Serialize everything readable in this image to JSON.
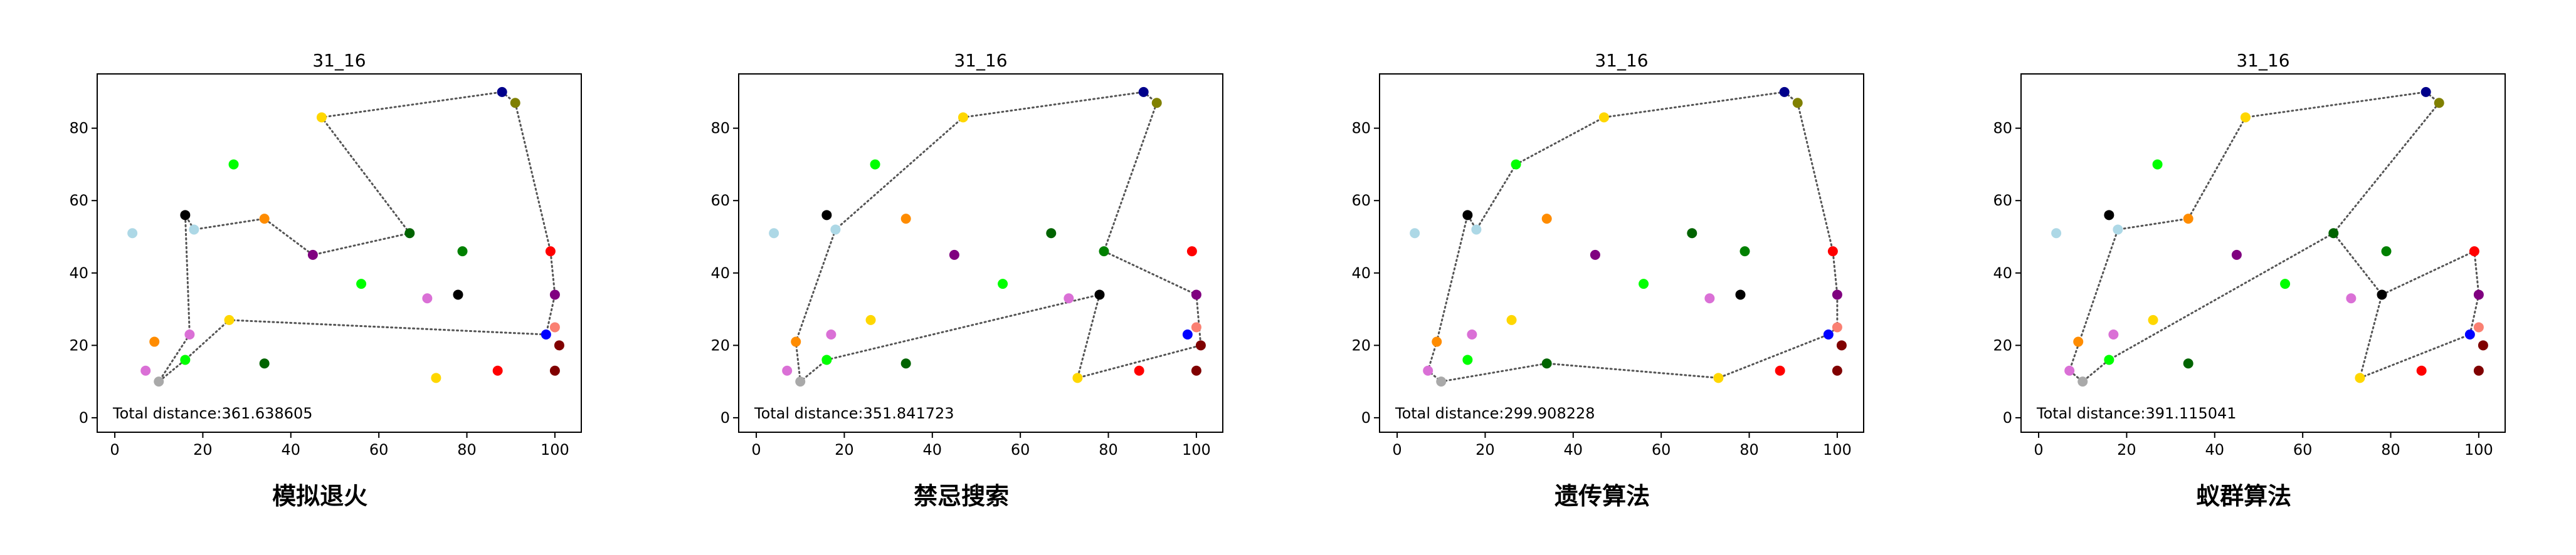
{
  "figure_title": "",
  "chart_data": [
    {
      "type": "scatter",
      "title": "31_16",
      "caption": "模拟退火",
      "annotation": "Total distance:361.638605",
      "xlabel": "",
      "ylabel": "",
      "xlim": [
        -4,
        106
      ],
      "ylim": [
        -4,
        95
      ],
      "xticks": [
        0,
        20,
        40,
        60,
        80,
        100
      ],
      "yticks": [
        0,
        20,
        40,
        60,
        80
      ],
      "grid": false,
      "points": [
        {
          "x": 88,
          "y": 90,
          "color": "#00008b"
        },
        {
          "x": 91,
          "y": 87,
          "color": "#808000"
        },
        {
          "x": 47,
          "y": 83,
          "color": "#ffd700"
        },
        {
          "x": 27,
          "y": 70,
          "color": "#00ff00"
        },
        {
          "x": 16,
          "y": 56,
          "color": "#000000"
        },
        {
          "x": 34,
          "y": 55,
          "color": "#ff8c00"
        },
        {
          "x": 18,
          "y": 52,
          "color": "#add8e6"
        },
        {
          "x": 4,
          "y": 51,
          "color": "#add8e6"
        },
        {
          "x": 67,
          "y": 51,
          "color": "#006400"
        },
        {
          "x": 79,
          "y": 46,
          "color": "#008000"
        },
        {
          "x": 99,
          "y": 46,
          "color": "#ff0000"
        },
        {
          "x": 45,
          "y": 45,
          "color": "#800080"
        },
        {
          "x": 56,
          "y": 37,
          "color": "#00ff00"
        },
        {
          "x": 78,
          "y": 34,
          "color": "#000000"
        },
        {
          "x": 71,
          "y": 33,
          "color": "#da70d6"
        },
        {
          "x": 100,
          "y": 34,
          "color": "#800080"
        },
        {
          "x": 26,
          "y": 27,
          "color": "#ffd700"
        },
        {
          "x": 100,
          "y": 25,
          "color": "#fa8072"
        },
        {
          "x": 98,
          "y": 23,
          "color": "#0000ff"
        },
        {
          "x": 17,
          "y": 23,
          "color": "#da70d6"
        },
        {
          "x": 9,
          "y": 21,
          "color": "#ff8c00"
        },
        {
          "x": 101,
          "y": 20,
          "color": "#800000"
        },
        {
          "x": 16,
          "y": 16,
          "color": "#00ff00"
        },
        {
          "x": 34,
          "y": 15,
          "color": "#006400"
        },
        {
          "x": 7,
          "y": 13,
          "color": "#da70d6"
        },
        {
          "x": 87,
          "y": 13,
          "color": "#ff0000"
        },
        {
          "x": 100,
          "y": 13,
          "color": "#800000"
        },
        {
          "x": 73,
          "y": 11,
          "color": "#ffd700"
        },
        {
          "x": 10,
          "y": 10,
          "color": "#a9a9a9"
        }
      ],
      "route": [
        {
          "x": 88,
          "y": 90
        },
        {
          "x": 91,
          "y": 87
        },
        {
          "x": 99,
          "y": 46
        },
        {
          "x": 100,
          "y": 34
        },
        {
          "x": 98,
          "y": 23
        },
        {
          "x": 26,
          "y": 27
        },
        {
          "x": 16,
          "y": 16
        },
        {
          "x": 10,
          "y": 10
        },
        {
          "x": 17,
          "y": 23
        },
        {
          "x": 16,
          "y": 56
        },
        {
          "x": 18,
          "y": 52
        },
        {
          "x": 34,
          "y": 55
        },
        {
          "x": 45,
          "y": 45
        },
        {
          "x": 67,
          "y": 51
        },
        {
          "x": 47,
          "y": 83
        },
        {
          "x": 88,
          "y": 90
        }
      ]
    },
    {
      "type": "scatter",
      "title": "31_16",
      "caption": "禁忌搜索",
      "annotation": "Total distance:351.841723",
      "xlabel": "",
      "ylabel": "",
      "xlim": [
        -4,
        106
      ],
      "ylim": [
        -4,
        95
      ],
      "xticks": [
        0,
        20,
        40,
        60,
        80,
        100
      ],
      "yticks": [
        0,
        20,
        40,
        60,
        80
      ],
      "grid": false,
      "points": [
        {
          "x": 88,
          "y": 90,
          "color": "#00008b"
        },
        {
          "x": 91,
          "y": 87,
          "color": "#808000"
        },
        {
          "x": 47,
          "y": 83,
          "color": "#ffd700"
        },
        {
          "x": 27,
          "y": 70,
          "color": "#00ff00"
        },
        {
          "x": 16,
          "y": 56,
          "color": "#000000"
        },
        {
          "x": 34,
          "y": 55,
          "color": "#ff8c00"
        },
        {
          "x": 18,
          "y": 52,
          "color": "#add8e6"
        },
        {
          "x": 4,
          "y": 51,
          "color": "#add8e6"
        },
        {
          "x": 67,
          "y": 51,
          "color": "#006400"
        },
        {
          "x": 79,
          "y": 46,
          "color": "#008000"
        },
        {
          "x": 99,
          "y": 46,
          "color": "#ff0000"
        },
        {
          "x": 45,
          "y": 45,
          "color": "#800080"
        },
        {
          "x": 56,
          "y": 37,
          "color": "#00ff00"
        },
        {
          "x": 78,
          "y": 34,
          "color": "#000000"
        },
        {
          "x": 71,
          "y": 33,
          "color": "#da70d6"
        },
        {
          "x": 100,
          "y": 34,
          "color": "#800080"
        },
        {
          "x": 26,
          "y": 27,
          "color": "#ffd700"
        },
        {
          "x": 100,
          "y": 25,
          "color": "#fa8072"
        },
        {
          "x": 98,
          "y": 23,
          "color": "#0000ff"
        },
        {
          "x": 17,
          "y": 23,
          "color": "#da70d6"
        },
        {
          "x": 9,
          "y": 21,
          "color": "#ff8c00"
        },
        {
          "x": 101,
          "y": 20,
          "color": "#800000"
        },
        {
          "x": 16,
          "y": 16,
          "color": "#00ff00"
        },
        {
          "x": 34,
          "y": 15,
          "color": "#006400"
        },
        {
          "x": 7,
          "y": 13,
          "color": "#da70d6"
        },
        {
          "x": 87,
          "y": 13,
          "color": "#ff0000"
        },
        {
          "x": 100,
          "y": 13,
          "color": "#800000"
        },
        {
          "x": 73,
          "y": 11,
          "color": "#ffd700"
        },
        {
          "x": 10,
          "y": 10,
          "color": "#a9a9a9"
        }
      ],
      "route": [
        {
          "x": 88,
          "y": 90
        },
        {
          "x": 91,
          "y": 87
        },
        {
          "x": 79,
          "y": 46
        },
        {
          "x": 100,
          "y": 34
        },
        {
          "x": 101,
          "y": 20
        },
        {
          "x": 73,
          "y": 11
        },
        {
          "x": 78,
          "y": 34
        },
        {
          "x": 16,
          "y": 16
        },
        {
          "x": 10,
          "y": 10
        },
        {
          "x": 9,
          "y": 21
        },
        {
          "x": 18,
          "y": 52
        },
        {
          "x": 47,
          "y": 83
        },
        {
          "x": 88,
          "y": 90
        }
      ]
    },
    {
      "type": "scatter",
      "title": "31_16",
      "caption": "遗传算法",
      "annotation": "Total distance:299.908228",
      "xlabel": "",
      "ylabel": "",
      "xlim": [
        -4,
        106
      ],
      "ylim": [
        -4,
        95
      ],
      "xticks": [
        0,
        20,
        40,
        60,
        80,
        100
      ],
      "yticks": [
        0,
        20,
        40,
        60,
        80
      ],
      "grid": false,
      "points": [
        {
          "x": 88,
          "y": 90,
          "color": "#00008b"
        },
        {
          "x": 91,
          "y": 87,
          "color": "#808000"
        },
        {
          "x": 47,
          "y": 83,
          "color": "#ffd700"
        },
        {
          "x": 27,
          "y": 70,
          "color": "#00ff00"
        },
        {
          "x": 16,
          "y": 56,
          "color": "#000000"
        },
        {
          "x": 34,
          "y": 55,
          "color": "#ff8c00"
        },
        {
          "x": 18,
          "y": 52,
          "color": "#add8e6"
        },
        {
          "x": 4,
          "y": 51,
          "color": "#add8e6"
        },
        {
          "x": 67,
          "y": 51,
          "color": "#006400"
        },
        {
          "x": 79,
          "y": 46,
          "color": "#008000"
        },
        {
          "x": 99,
          "y": 46,
          "color": "#ff0000"
        },
        {
          "x": 45,
          "y": 45,
          "color": "#800080"
        },
        {
          "x": 56,
          "y": 37,
          "color": "#00ff00"
        },
        {
          "x": 78,
          "y": 34,
          "color": "#000000"
        },
        {
          "x": 71,
          "y": 33,
          "color": "#da70d6"
        },
        {
          "x": 100,
          "y": 34,
          "color": "#800080"
        },
        {
          "x": 26,
          "y": 27,
          "color": "#ffd700"
        },
        {
          "x": 100,
          "y": 25,
          "color": "#fa8072"
        },
        {
          "x": 98,
          "y": 23,
          "color": "#0000ff"
        },
        {
          "x": 17,
          "y": 23,
          "color": "#da70d6"
        },
        {
          "x": 9,
          "y": 21,
          "color": "#ff8c00"
        },
        {
          "x": 101,
          "y": 20,
          "color": "#800000"
        },
        {
          "x": 16,
          "y": 16,
          "color": "#00ff00"
        },
        {
          "x": 34,
          "y": 15,
          "color": "#006400"
        },
        {
          "x": 7,
          "y": 13,
          "color": "#da70d6"
        },
        {
          "x": 87,
          "y": 13,
          "color": "#ff0000"
        },
        {
          "x": 100,
          "y": 13,
          "color": "#800000"
        },
        {
          "x": 73,
          "y": 11,
          "color": "#ffd700"
        },
        {
          "x": 10,
          "y": 10,
          "color": "#a9a9a9"
        }
      ],
      "route": [
        {
          "x": 88,
          "y": 90
        },
        {
          "x": 91,
          "y": 87
        },
        {
          "x": 99,
          "y": 46
        },
        {
          "x": 100,
          "y": 34
        },
        {
          "x": 100,
          "y": 25
        },
        {
          "x": 98,
          "y": 23
        },
        {
          "x": 73,
          "y": 11
        },
        {
          "x": 34,
          "y": 15
        },
        {
          "x": 10,
          "y": 10
        },
        {
          "x": 7,
          "y": 13
        },
        {
          "x": 9,
          "y": 21
        },
        {
          "x": 16,
          "y": 56
        },
        {
          "x": 18,
          "y": 52
        },
        {
          "x": 27,
          "y": 70
        },
        {
          "x": 47,
          "y": 83
        },
        {
          "x": 88,
          "y": 90
        }
      ]
    },
    {
      "type": "scatter",
      "title": "31_16",
      "caption": "蚁群算法",
      "annotation": "Total distance:391.115041",
      "xlabel": "",
      "ylabel": "",
      "xlim": [
        -4,
        106
      ],
      "ylim": [
        -4,
        95
      ],
      "xticks": [
        0,
        20,
        40,
        60,
        80,
        100
      ],
      "yticks": [
        0,
        20,
        40,
        60,
        80
      ],
      "grid": false,
      "points": [
        {
          "x": 88,
          "y": 90,
          "color": "#00008b"
        },
        {
          "x": 91,
          "y": 87,
          "color": "#808000"
        },
        {
          "x": 47,
          "y": 83,
          "color": "#ffd700"
        },
        {
          "x": 27,
          "y": 70,
          "color": "#00ff00"
        },
        {
          "x": 16,
          "y": 56,
          "color": "#000000"
        },
        {
          "x": 34,
          "y": 55,
          "color": "#ff8c00"
        },
        {
          "x": 18,
          "y": 52,
          "color": "#add8e6"
        },
        {
          "x": 4,
          "y": 51,
          "color": "#add8e6"
        },
        {
          "x": 67,
          "y": 51,
          "color": "#006400"
        },
        {
          "x": 79,
          "y": 46,
          "color": "#008000"
        },
        {
          "x": 99,
          "y": 46,
          "color": "#ff0000"
        },
        {
          "x": 45,
          "y": 45,
          "color": "#800080"
        },
        {
          "x": 56,
          "y": 37,
          "color": "#00ff00"
        },
        {
          "x": 78,
          "y": 34,
          "color": "#000000"
        },
        {
          "x": 71,
          "y": 33,
          "color": "#da70d6"
        },
        {
          "x": 100,
          "y": 34,
          "color": "#800080"
        },
        {
          "x": 26,
          "y": 27,
          "color": "#ffd700"
        },
        {
          "x": 100,
          "y": 25,
          "color": "#fa8072"
        },
        {
          "x": 98,
          "y": 23,
          "color": "#0000ff"
        },
        {
          "x": 17,
          "y": 23,
          "color": "#da70d6"
        },
        {
          "x": 9,
          "y": 21,
          "color": "#ff8c00"
        },
        {
          "x": 101,
          "y": 20,
          "color": "#800000"
        },
        {
          "x": 16,
          "y": 16,
          "color": "#00ff00"
        },
        {
          "x": 34,
          "y": 15,
          "color": "#006400"
        },
        {
          "x": 7,
          "y": 13,
          "color": "#da70d6"
        },
        {
          "x": 87,
          "y": 13,
          "color": "#ff0000"
        },
        {
          "x": 100,
          "y": 13,
          "color": "#800000"
        },
        {
          "x": 73,
          "y": 11,
          "color": "#ffd700"
        },
        {
          "x": 10,
          "y": 10,
          "color": "#a9a9a9"
        }
      ],
      "route": [
        {
          "x": 88,
          "y": 90
        },
        {
          "x": 91,
          "y": 87
        },
        {
          "x": 67,
          "y": 51
        },
        {
          "x": 16,
          "y": 16
        },
        {
          "x": 10,
          "y": 10
        },
        {
          "x": 7,
          "y": 13
        },
        {
          "x": 18,
          "y": 52
        },
        {
          "x": 34,
          "y": 55
        },
        {
          "x": 47,
          "y": 83
        },
        {
          "x": 88,
          "y": 90
        }
      ],
      "route2": [
        {
          "x": 67,
          "y": 51
        },
        {
          "x": 78,
          "y": 34
        },
        {
          "x": 99,
          "y": 46
        },
        {
          "x": 100,
          "y": 34
        },
        {
          "x": 98,
          "y": 23
        },
        {
          "x": 73,
          "y": 11
        },
        {
          "x": 78,
          "y": 34
        }
      ]
    }
  ]
}
